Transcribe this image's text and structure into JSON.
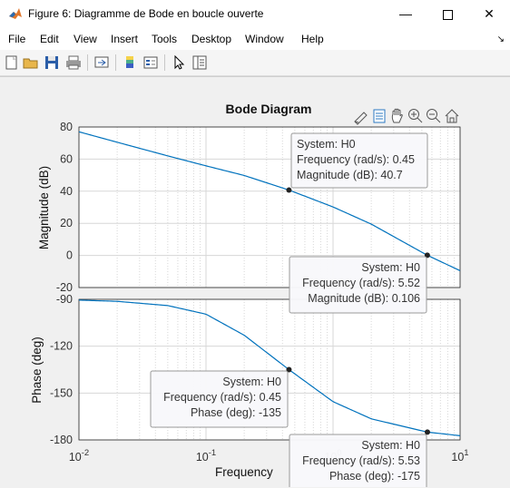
{
  "window": {
    "title": "Figure 6: Diagramme de Bode en boucle ouverte",
    "minimize_icon": "minimize-icon",
    "maximize_icon": "maximize-icon",
    "close_icon": "close-icon"
  },
  "menu": {
    "items": [
      "File",
      "Edit",
      "View",
      "Insert",
      "Tools",
      "Desktop",
      "Window",
      "Help"
    ]
  },
  "toolbar": {
    "icons": [
      "new-figure-icon",
      "open-icon",
      "save-icon",
      "print-icon",
      "link-icon",
      "colorbar-icon",
      "legend-icon",
      "pointer-icon",
      "property-inspector-icon"
    ]
  },
  "axes_toolbar": {
    "icons": [
      "brush-icon",
      "datatip-icon",
      "pan-icon",
      "zoom-in-icon",
      "zoom-out-icon",
      "home-icon"
    ]
  },
  "colors": {
    "line": "#0072bd",
    "grid": "#d7d7d7",
    "axes_bg": "#ffffff",
    "figure_bg": "#f0f0f0"
  },
  "chart_data": [
    {
      "type": "line",
      "title": "Bode Diagram",
      "xlabel": "Frequency",
      "ylabel": "Magnitude (dB)",
      "xscale": "log",
      "xlim": [
        0.01,
        10
      ],
      "ylim": [
        -20,
        80
      ],
      "yticks": [
        80,
        60,
        40,
        20,
        0,
        -20
      ],
      "grid": true,
      "series": [
        {
          "x": [
            0.01,
            0.02,
            0.05,
            0.1,
            0.2,
            0.45,
            1,
            2,
            5.52,
            10
          ],
          "y": [
            77,
            70.5,
            62,
            55.8,
            49.8,
            40.7,
            30.2,
            19.5,
            0.106,
            -9.5
          ]
        }
      ],
      "datatips": [
        {
          "system": "System: H0",
          "freq": "Frequency (rad/s): 0.45",
          "value": "Magnitude (dB): 40.7",
          "x": 0.45,
          "y": 40.7
        },
        {
          "system": "System: H0",
          "freq": "Frequency (rad/s): 5.52",
          "value": "Magnitude (dB): 0.106",
          "x": 5.52,
          "y": 0.106
        }
      ]
    },
    {
      "type": "line",
      "xlabel": "Frequency",
      "ylabel": "Phase (deg)",
      "xscale": "log",
      "xlim": [
        0.01,
        10
      ],
      "ylim": [
        -180,
        -90
      ],
      "yticks": [
        -90,
        -120,
        -150,
        -180
      ],
      "xticks": [
        "10-2",
        "10-1",
        "100",
        "101"
      ],
      "grid": true,
      "series": [
        {
          "x": [
            0.01,
            0.02,
            0.05,
            0.1,
            0.2,
            0.45,
            1,
            2,
            5.53,
            10
          ],
          "y": [
            -90.5,
            -91.3,
            -94,
            -99.5,
            -113,
            -135,
            -155.5,
            -166.5,
            -175,
            -177.3
          ]
        }
      ],
      "datatips": [
        {
          "system": "System: H0",
          "freq": "Frequency (rad/s): 0.45",
          "value": "Phase (deg): -135",
          "x": 0.45,
          "y": -135
        },
        {
          "system": "System: H0",
          "freq": "Frequency (rad/s): 5.53",
          "value": "Phase (deg): -175",
          "x": 5.53,
          "y": -175
        }
      ]
    }
  ]
}
